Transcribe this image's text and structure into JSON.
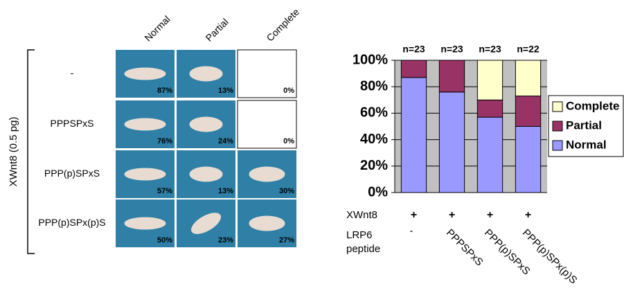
{
  "image_grid": {
    "side_label": "XWnt8 (0.5 pg)",
    "columns": [
      "Normal",
      "Partial",
      "Complete"
    ],
    "rows": [
      {
        "label": "-",
        "cells": [
          "87%",
          "13%",
          "0%"
        ]
      },
      {
        "label": "PPPSPxS",
        "cells": [
          "76%",
          "24%",
          "0%"
        ]
      },
      {
        "label": "PPP(p)SPxS",
        "cells": [
          "57%",
          "13%",
          "30%"
        ]
      },
      {
        "label": "PPP(p)SPx(p)S",
        "cells": [
          "50%",
          "23%",
          "27%"
        ]
      }
    ]
  },
  "chart_data": {
    "type": "stacked_bar",
    "categories": [
      "-",
      "PPPSPxS",
      "PPP(p)SPxS",
      "PPP(p)SPx(p)S"
    ],
    "n_labels": [
      "n=23",
      "n=23",
      "n=23",
      "n=22"
    ],
    "xwnt8_label": "XWnt8",
    "xwnt8_marks": [
      "+",
      "+",
      "+",
      "+"
    ],
    "peptide_label": [
      "LRP6",
      "peptide"
    ],
    "series": [
      {
        "name": "Normal",
        "color": "#9999ff",
        "values": [
          87,
          76,
          57,
          50
        ]
      },
      {
        "name": "Partial",
        "color": "#993366",
        "values": [
          13,
          24,
          13,
          23
        ]
      },
      {
        "name": "Complete",
        "color": "#ffffcc",
        "values": [
          0,
          0,
          30,
          27
        ]
      }
    ],
    "ylim": [
      0,
      100
    ],
    "yticks": [
      {
        "value": 0,
        "label": "0%"
      },
      {
        "value": 20,
        "label": "20%"
      },
      {
        "value": 40,
        "label": "40%"
      },
      {
        "value": 60,
        "label": "60%"
      },
      {
        "value": 80,
        "label": "80%"
      },
      {
        "value": 100,
        "label": "100%"
      }
    ],
    "grid": true,
    "plot_background": "#c0c0c0",
    "legend": "right"
  }
}
